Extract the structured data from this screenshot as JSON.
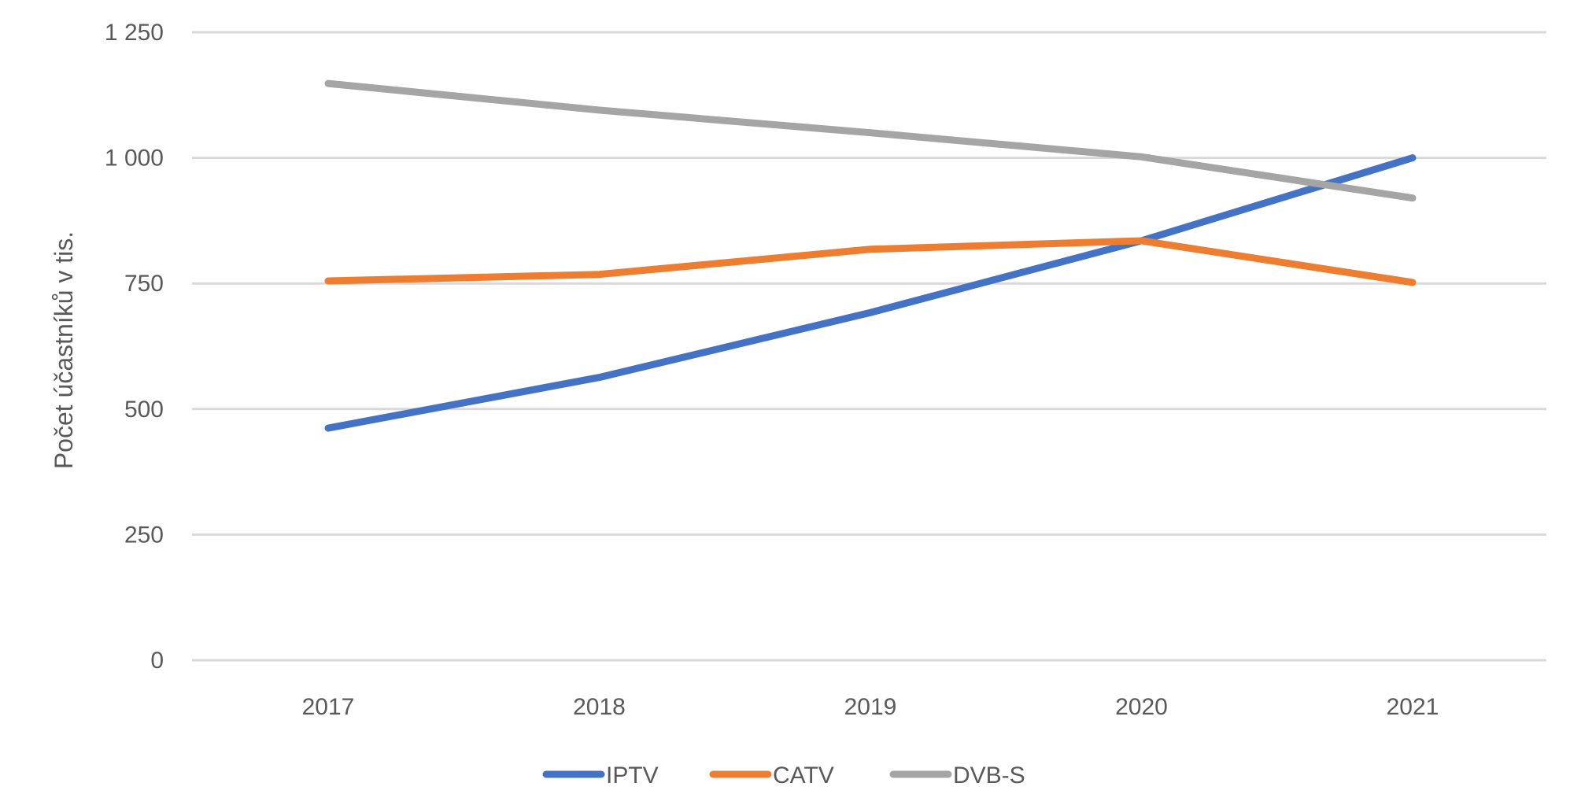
{
  "chart_data": {
    "type": "line",
    "title": "",
    "xlabel": "",
    "ylabel": "Počet účastníků v tis.",
    "categories": [
      "2017",
      "2018",
      "2019",
      "2020",
      "2021"
    ],
    "ylim": [
      0,
      1250
    ],
    "yticks": [
      0,
      250,
      500,
      750,
      1000,
      1250
    ],
    "ytick_labels": [
      "0",
      "250",
      "500",
      "750",
      "1 000",
      "1 250"
    ],
    "grid": true,
    "legend_position": "bottom",
    "series": [
      {
        "name": "IPTV",
        "color": "#4472c4",
        "values": [
          462,
          563,
          692,
          835,
          1000
        ]
      },
      {
        "name": "CATV",
        "color": "#ed7d31",
        "values": [
          755,
          768,
          818,
          835,
          752
        ]
      },
      {
        "name": "DVB-S",
        "color": "#a5a5a5",
        "values": [
          1148,
          1095,
          1050,
          1002,
          920
        ]
      }
    ]
  }
}
